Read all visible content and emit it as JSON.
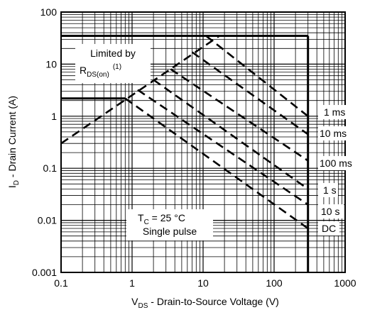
{
  "chart_data": {
    "type": "line",
    "xscale": "log",
    "yscale": "log",
    "xlim": [
      0.1,
      1000
    ],
    "ylim": [
      0.001,
      100
    ],
    "grid": true,
    "x_ticks": [
      "0.1",
      "1",
      "10",
      "100",
      "1000"
    ],
    "y_ticks": [
      "0.001",
      "0.01",
      "0.1",
      "1",
      "10",
      "100"
    ],
    "xlabel": {
      "pre": "V",
      "sub": "DS",
      "post": " - Drain-to-Source Voltage (V)"
    },
    "ylabel": {
      "pre": "I",
      "sub": "D",
      "post": " - Drain Current (A)"
    },
    "limit_boundaries": [
      {
        "name": "current limit",
        "points": [
          [
            0.1,
            35
          ],
          [
            300,
            35
          ]
        ]
      },
      {
        "name": "voltage limit",
        "points": [
          [
            300,
            0.001
          ],
          [
            300,
            35
          ]
        ]
      },
      {
        "name": "continuous current",
        "points": [
          [
            0.1,
            2.2
          ],
          [
            0.8,
            2.2
          ]
        ]
      }
    ],
    "rds_limit_line": {
      "points": [
        [
          0.1,
          0.3
        ],
        [
          17,
          35
        ]
      ]
    },
    "series": [
      {
        "name": "1 ms",
        "points": [
          [
            11,
            35
          ],
          [
            300,
            1.0
          ]
        ]
      },
      {
        "name": "10 ms",
        "points": [
          [
            7,
            17
          ],
          [
            300,
            0.45
          ]
        ]
      },
      {
        "name": "100 ms",
        "points": [
          [
            3.5,
            8
          ],
          [
            300,
            0.14
          ]
        ]
      },
      {
        "name": "1 s",
        "points": [
          [
            2,
            5
          ],
          [
            300,
            0.04
          ]
        ]
      },
      {
        "name": "10 s",
        "points": [
          [
            1.2,
            3.2
          ],
          [
            300,
            0.02
          ]
        ]
      },
      {
        "name": "DC",
        "points": [
          [
            0.8,
            2.2
          ],
          [
            300,
            0.007
          ]
        ]
      }
    ],
    "annotations": {
      "limited_line1": "Limited by",
      "limited_r": "R",
      "limited_sub": "DS(on)",
      "limited_note": "(1)",
      "tc_pre": "T",
      "tc_sub": "C",
      "tc_post": " = 25 °C",
      "pulse": "Single pulse"
    }
  }
}
